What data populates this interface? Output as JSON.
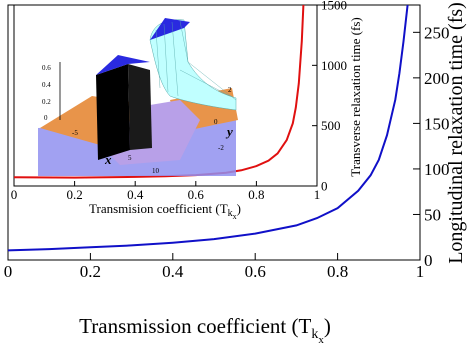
{
  "colors": {
    "main_curve": "#1010c8",
    "inset_curve": "#e01010",
    "surface_top": "#2a2ae0",
    "surface_side": "#c0ffff",
    "floor_orange": "#e8944a",
    "floor_blue": "#9090f0"
  },
  "chart_data": [
    {
      "type": "line",
      "title": "",
      "xlabel": "Transmission coefficient (T",
      "xlabel_sub1": "k",
      "xlabel_sub2": "x",
      "xlabel_close": ")",
      "ylabel": "Longitudinal relaxation time (fs)",
      "ylabel_side": "right",
      "xlim": [
        0,
        1
      ],
      "ylim": [
        0,
        280
      ],
      "x_ticks": [
        0,
        0.2,
        0.4,
        0.6,
        0.8,
        1
      ],
      "x_tick_labels": [
        "0",
        "0.2",
        "0.4",
        "0.6",
        "0.8",
        "1"
      ],
      "y_ticks": [
        0,
        50,
        100,
        150,
        200,
        250
      ],
      "y_tick_labels": [
        "0",
        "50",
        "100",
        "150",
        "200",
        "250"
      ],
      "series": [
        {
          "x": [
            0.0,
            0.1,
            0.2,
            0.3,
            0.4,
            0.5,
            0.6,
            0.7,
            0.75,
            0.8,
            0.85,
            0.88,
            0.9,
            0.92,
            0.94,
            0.95,
            0.96,
            0.97
          ],
          "y": [
            10.5,
            12,
            14,
            16,
            19,
            23,
            29,
            38,
            46,
            57,
            76,
            93,
            110,
            137,
            176,
            205,
            240,
            280
          ]
        }
      ]
    },
    {
      "type": "line",
      "title": "",
      "xlabel": "Transmision coefficient (T",
      "xlabel_sub1": "k",
      "xlabel_sub2": "x",
      "xlabel_close": ")",
      "ylabel": "Transverse relaxation time (fs)",
      "ylabel_side": "right",
      "xlim": [
        0,
        1
      ],
      "ylim": [
        0,
        1500
      ],
      "x_ticks": [
        0,
        0.2,
        0.4,
        0.6,
        0.8,
        1
      ],
      "x_tick_labels": [
        "0",
        "0.2",
        "0.4",
        "0.6",
        "0.8",
        "1"
      ],
      "y_ticks": [
        0,
        500,
        1000,
        1500
      ],
      "y_tick_labels": [
        "0",
        "500",
        "1000",
        "1500"
      ],
      "series": [
        {
          "x": [
            0.0,
            0.2,
            0.4,
            0.5,
            0.6,
            0.7,
            0.75,
            0.8,
            0.84,
            0.87,
            0.9,
            0.92,
            0.93,
            0.94,
            0.95,
            0.955
          ],
          "y": [
            72,
            70,
            75,
            80,
            90,
            110,
            130,
            165,
            210,
            270,
            380,
            520,
            650,
            850,
            1200,
            1500
          ]
        }
      ]
    }
  ],
  "surface_labels": {
    "z_ticks": [
      "0.6",
      "0.4",
      "0.2",
      "0"
    ],
    "x_ticks": [
      "-5",
      "0",
      "5",
      "10"
    ],
    "y_ticks": [
      "2",
      "0",
      "-2"
    ],
    "x_axis": "x",
    "y_axis": "y"
  }
}
